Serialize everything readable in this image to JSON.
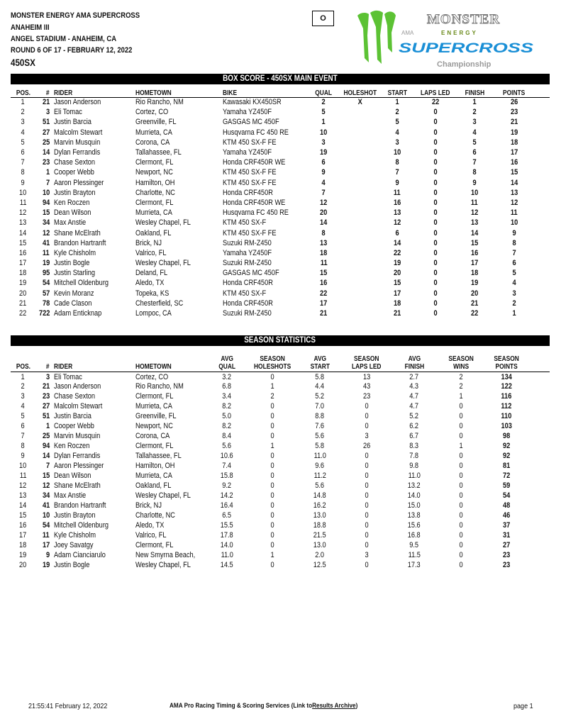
{
  "header": {
    "line1": "MONSTER ENERGY AMA SUPERCROSS",
    "line2": "ANAHEIM III",
    "line3": "ANGEL STADIUM - ANAHEIM, CA",
    "line4": "ROUND 6 OF 17 - FEBRUARY 12, 2022",
    "class": "450SX",
    "box_label": "O"
  },
  "logo": {
    "monster": "MONSTER",
    "energy": "ENERGY",
    "ama": "AMA",
    "supercross": "SUPERCROSS",
    "championship": "Championship",
    "colors": {
      "claw": "#5cc234",
      "blue": "#1a8fd6",
      "gray": "#9a9a9a",
      "energy": "#6a8a1a"
    }
  },
  "box_score": {
    "title": "BOX SCORE - 450SX MAIN EVENT",
    "columns": [
      "POS.",
      "#",
      "RIDER",
      "HOMETOWN",
      "BIKE",
      "QUAL",
      "HOLESHOT",
      "START",
      "LAPS LED",
      "FINISH",
      "POINTS"
    ],
    "rows": [
      [
        "1",
        "21",
        "Jason Anderson",
        "Rio Rancho, NM",
        "Kawasaki KX450SR",
        "2",
        "X",
        "1",
        "22",
        "1",
        "26"
      ],
      [
        "2",
        "3",
        "Eli Tomac",
        "Cortez, CO",
        "Yamaha YZ450F",
        "5",
        "",
        "2",
        "0",
        "2",
        "23"
      ],
      [
        "3",
        "51",
        "Justin Barcia",
        "Greenville, FL",
        "GASGAS MC 450F",
        "1",
        "",
        "5",
        "0",
        "3",
        "21"
      ],
      [
        "4",
        "27",
        "Malcolm Stewart",
        "Murrieta, CA",
        "Husqvarna FC 450 RE",
        "10",
        "",
        "4",
        "0",
        "4",
        "19"
      ],
      [
        "5",
        "25",
        "Marvin Musquin",
        "Corona, CA",
        "KTM 450 SX-F FE",
        "3",
        "",
        "3",
        "0",
        "5",
        "18"
      ],
      [
        "6",
        "14",
        "Dylan Ferrandis",
        "Tallahassee, FL",
        "Yamaha YZ450F",
        "19",
        "",
        "10",
        "0",
        "6",
        "17"
      ],
      [
        "7",
        "23",
        "Chase Sexton",
        "Clermont, FL",
        "Honda CRF450R WE",
        "6",
        "",
        "8",
        "0",
        "7",
        "16"
      ],
      [
        "8",
        "1",
        "Cooper Webb",
        "Newport, NC",
        "KTM 450 SX-F FE",
        "9",
        "",
        "7",
        "0",
        "8",
        "15"
      ],
      [
        "9",
        "7",
        "Aaron Plessinger",
        "Hamilton, OH",
        "KTM 450 SX-F FE",
        "4",
        "",
        "9",
        "0",
        "9",
        "14"
      ],
      [
        "10",
        "10",
        "Justin Brayton",
        "Charlotte, NC",
        "Honda CRF450R",
        "7",
        "",
        "11",
        "0",
        "10",
        "13"
      ],
      [
        "11",
        "94",
        "Ken Roczen",
        "Clermont, FL",
        "Honda CRF450R WE",
        "12",
        "",
        "16",
        "0",
        "11",
        "12"
      ],
      [
        "12",
        "15",
        "Dean Wilson",
        "Murrieta, CA",
        "Husqvarna FC 450 RE",
        "20",
        "",
        "13",
        "0",
        "12",
        "11"
      ],
      [
        "13",
        "34",
        "Max Anstie",
        "Wesley Chapel, FL",
        "KTM 450 SX-F",
        "14",
        "",
        "12",
        "0",
        "13",
        "10"
      ],
      [
        "14",
        "12",
        "Shane McElrath",
        "Oakland, FL",
        "KTM 450 SX-F FE",
        "8",
        "",
        "6",
        "0",
        "14",
        "9"
      ],
      [
        "15",
        "41",
        "Brandon Hartranft",
        "Brick, NJ",
        "Suzuki RM-Z450",
        "13",
        "",
        "14",
        "0",
        "15",
        "8"
      ],
      [
        "16",
        "11",
        "Kyle Chisholm",
        "Valrico, FL",
        "Yamaha YZ450F",
        "18",
        "",
        "22",
        "0",
        "16",
        "7"
      ],
      [
        "17",
        "19",
        "Justin Bogle",
        "Wesley Chapel, FL",
        "Suzuki RM-Z450",
        "11",
        "",
        "19",
        "0",
        "17",
        "6"
      ],
      [
        "18",
        "95",
        "Justin Starling",
        "Deland, FL",
        "GASGAS MC 450F",
        "15",
        "",
        "20",
        "0",
        "18",
        "5"
      ],
      [
        "19",
        "54",
        "Mitchell Oldenburg",
        "Aledo, TX",
        "Honda CRF450R",
        "16",
        "",
        "15",
        "0",
        "19",
        "4"
      ],
      [
        "20",
        "57",
        "Kevin Moranz",
        "Topeka, KS",
        "KTM 450 SX-F",
        "22",
        "",
        "17",
        "0",
        "20",
        "3"
      ],
      [
        "21",
        "78",
        "Cade Clason",
        "Chesterfield, SC",
        "Honda CRF450R",
        "17",
        "",
        "18",
        "0",
        "21",
        "2"
      ],
      [
        "22",
        "722",
        "Adam Enticknap",
        "Lompoc, CA",
        "Suzuki RM-Z450",
        "21",
        "",
        "21",
        "0",
        "22",
        "1"
      ]
    ]
  },
  "season_stats": {
    "title": "SEASON STATISTICS",
    "columns": [
      [
        "",
        "POS."
      ],
      [
        "",
        "#"
      ],
      [
        "",
        "RIDER"
      ],
      [
        "",
        "HOMETOWN"
      ],
      [
        "AVG",
        "QUAL"
      ],
      [
        "SEASON",
        "HOLESHOTS"
      ],
      [
        "AVG",
        "START"
      ],
      [
        "SEASON",
        "LAPS LED"
      ],
      [
        "AVG",
        "FINISH"
      ],
      [
        "SEASON",
        "WINS"
      ],
      [
        "SEASON",
        "POINTS"
      ]
    ],
    "rows": [
      [
        "1",
        "3",
        "Eli Tomac",
        "Cortez, CO",
        "3.2",
        "0",
        "5.8",
        "13",
        "2.7",
        "2",
        "134"
      ],
      [
        "2",
        "21",
        "Jason Anderson",
        "Rio Rancho, NM",
        "6.8",
        "1",
        "4.4",
        "43",
        "4.3",
        "2",
        "122"
      ],
      [
        "3",
        "23",
        "Chase Sexton",
        "Clermont, FL",
        "3.4",
        "2",
        "5.2",
        "23",
        "4.7",
        "1",
        "116"
      ],
      [
        "4",
        "27",
        "Malcolm Stewart",
        "Murrieta, CA",
        "8.2",
        "0",
        "7.0",
        "0",
        "4.7",
        "0",
        "112"
      ],
      [
        "5",
        "51",
        "Justin Barcia",
        "Greenville, FL",
        "5.0",
        "0",
        "8.8",
        "0",
        "5.2",
        "0",
        "110"
      ],
      [
        "6",
        "1",
        "Cooper Webb",
        "Newport, NC",
        "8.2",
        "0",
        "7.6",
        "0",
        "6.2",
        "0",
        "103"
      ],
      [
        "7",
        "25",
        "Marvin Musquin",
        "Corona, CA",
        "8.4",
        "0",
        "5.6",
        "3",
        "6.7",
        "0",
        "98"
      ],
      [
        "8",
        "94",
        "Ken Roczen",
        "Clermont, FL",
        "5.6",
        "1",
        "5.8",
        "26",
        "8.3",
        "1",
        "92"
      ],
      [
        "9",
        "14",
        "Dylan Ferrandis",
        "Tallahassee, FL",
        "10.6",
        "0",
        "11.0",
        "0",
        "7.8",
        "0",
        "92"
      ],
      [
        "10",
        "7",
        "Aaron Plessinger",
        "Hamilton, OH",
        "7.4",
        "0",
        "9.6",
        "0",
        "9.8",
        "0",
        "81"
      ],
      [
        "11",
        "15",
        "Dean Wilson",
        "Murrieta, CA",
        "15.8",
        "0",
        "11.2",
        "0",
        "11.0",
        "0",
        "72"
      ],
      [
        "12",
        "12",
        "Shane McElrath",
        "Oakland, FL",
        "9.2",
        "0",
        "5.6",
        "0",
        "13.2",
        "0",
        "59"
      ],
      [
        "13",
        "34",
        "Max Anstie",
        "Wesley Chapel, FL",
        "14.2",
        "0",
        "14.8",
        "0",
        "14.0",
        "0",
        "54"
      ],
      [
        "14",
        "41",
        "Brandon Hartranft",
        "Brick, NJ",
        "16.4",
        "0",
        "16.2",
        "0",
        "15.0",
        "0",
        "48"
      ],
      [
        "15",
        "10",
        "Justin Brayton",
        "Charlotte, NC",
        "6.5",
        "0",
        "13.0",
        "0",
        "13.8",
        "0",
        "46"
      ],
      [
        "16",
        "54",
        "Mitchell Oldenburg",
        "Aledo, TX",
        "15.5",
        "0",
        "18.8",
        "0",
        "15.6",
        "0",
        "37"
      ],
      [
        "17",
        "11",
        "Kyle Chisholm",
        "Valrico, FL",
        "17.8",
        "0",
        "21.5",
        "0",
        "16.8",
        "0",
        "31"
      ],
      [
        "18",
        "17",
        "Joey Savatgy",
        "Clermont, FL",
        "14.0",
        "0",
        "13.0",
        "0",
        "9.5",
        "0",
        "27"
      ],
      [
        "19",
        "9",
        "Adam Cianciarulo",
        "New Smyrna Beach,",
        "11.0",
        "1",
        "2.0",
        "3",
        "11.5",
        "0",
        "23"
      ],
      [
        "20",
        "19",
        "Justin Bogle",
        "Wesley Chapel, FL",
        "14.5",
        "0",
        "12.5",
        "0",
        "17.3",
        "0",
        "23"
      ]
    ]
  },
  "footer": {
    "timestamp": "21:55:41 February 12, 2022",
    "credit_prefix": "AMA Pro Racing Timing & Scoring Services (Link to ",
    "link_label": "Results Archive",
    "credit_suffix": ")",
    "page": "page 1"
  }
}
